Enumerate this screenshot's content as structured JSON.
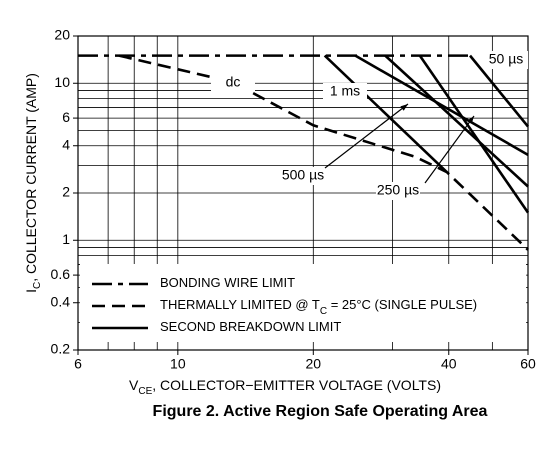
{
  "chart_data": {
    "type": "line",
    "title": "Figure 2. Active Region Safe Operating Area",
    "xlabel": [
      "V",
      "CE",
      ", COLLECTOR−EMITTER VOLTAGE (VOLTS)"
    ],
    "ylabel": [
      "I",
      "C",
      ", COLLECTOR CURRENT (AMP)"
    ],
    "xscale": "log",
    "yscale": "log",
    "xlim": [
      6,
      60
    ],
    "ylim": [
      0.2,
      20
    ],
    "xticks": [
      6,
      10,
      20,
      40,
      60
    ],
    "yticks": [
      0.2,
      0.4,
      0.6,
      1,
      2,
      4,
      6,
      10,
      20
    ],
    "xgrid": [
      6,
      7,
      8,
      9,
      10,
      20,
      30,
      40,
      50,
      60
    ],
    "ygrid": [
      0.2,
      0.3,
      0.4,
      0.5,
      0.6,
      0.7,
      0.8,
      0.9,
      1,
      2,
      3,
      4,
      5,
      6,
      7,
      8,
      9,
      10,
      20
    ],
    "color": "#000000",
    "series": [
      {
        "style": "dashdot",
        "x": [
          6,
          44.6
        ],
        "values": [
          15,
          15
        ]
      },
      {
        "style": "dashed",
        "x": [
          7.4,
          13.2,
          20,
          33.7,
          39.6,
          60
        ],
        "values": [
          15,
          10.2,
          5.4,
          3.4,
          2.72,
          0.87
        ]
      },
      {
        "name": "dc",
        "style": "solid",
        "x": [
          21.2,
          39.6
        ],
        "values": [
          15,
          2.72
        ]
      },
      {
        "name": "1 ms",
        "style": "solid",
        "x": [
          24.8,
          60
        ],
        "values": [
          15,
          3.5
        ]
      },
      {
        "name": "500 µs",
        "style": "solid",
        "x": [
          28.9,
          60
        ],
        "values": [
          15,
          2.2
        ]
      },
      {
        "name": "250 µs",
        "style": "solid",
        "x": [
          34.5,
          60
        ],
        "values": [
          15,
          1.5
        ]
      },
      {
        "name": "50 µs",
        "style": "solid",
        "x": [
          44.6,
          60
        ],
        "values": [
          15,
          5.3
        ]
      }
    ],
    "legend": [
      {
        "style": "dashdot",
        "label": [
          "BONDING WIRE LIMIT"
        ]
      },
      {
        "style": "dashed",
        "label": [
          "THERMALLY LIMITED @ T",
          "C",
          " = 25°C (SINGLE PULSE)"
        ]
      },
      {
        "style": "solid",
        "label": [
          "SECOND BREAKDOWN LIMIT"
        ]
      }
    ]
  }
}
